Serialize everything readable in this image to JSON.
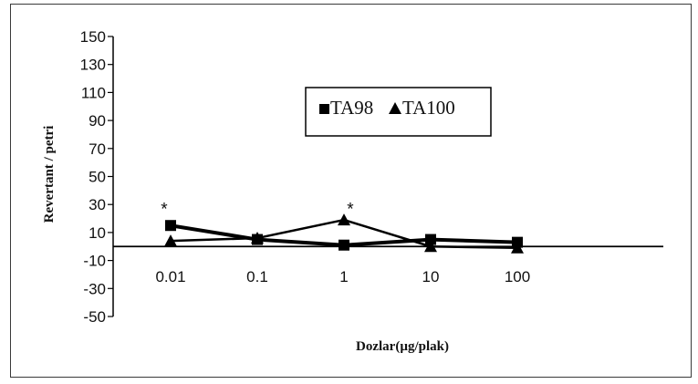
{
  "chart_data": {
    "type": "line",
    "title": "",
    "xlabel": "Dozlar(µg/plak)",
    "ylabel": "Revertant / petri",
    "categories": [
      "0.01",
      "0.1",
      "1",
      "10",
      "100"
    ],
    "ylim": [
      -50,
      150
    ],
    "yticks": [
      "150",
      "130",
      "110",
      "90",
      "70",
      "50",
      "30",
      "10",
      "-10",
      "-30",
      "-50"
    ],
    "series": [
      {
        "name": "TA98",
        "marker": "square",
        "values": [
          15,
          5,
          1,
          5,
          3
        ],
        "color": "#000000"
      },
      {
        "name": "TA100",
        "marker": "triangle",
        "values": [
          4,
          6,
          19,
          0,
          -1
        ],
        "color": "#000000"
      }
    ],
    "annotations": [
      {
        "text": "*",
        "category": "0.01",
        "y": 28
      },
      {
        "text": "*",
        "category": "1",
        "y": 28
      }
    ],
    "legend_placement": "top-center",
    "grid": false
  }
}
